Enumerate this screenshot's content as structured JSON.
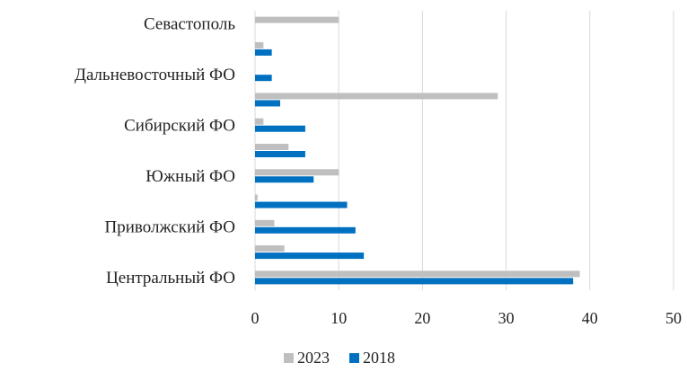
{
  "chart_data": {
    "type": "barh",
    "categories": [
      "Центральный ФО",
      null,
      "Приволжский ФО",
      null,
      "Южный ФО",
      null,
      "Сибирский ФО",
      null,
      "Дальневосточный ФО",
      null,
      "Севастополь"
    ],
    "series": [
      {
        "name": "2023",
        "color": "#bfbfbf",
        "values": [
          38.8,
          3.5,
          2.3,
          0.3,
          10,
          4,
          1,
          29,
          0,
          1,
          10
        ]
      },
      {
        "name": "2018",
        "color": "#0070c0",
        "values": [
          38,
          13,
          12,
          11,
          7,
          6,
          6,
          3,
          2,
          2,
          null
        ]
      }
    ],
    "xlim": [
      0,
      50
    ],
    "xticks": [
      0,
      10,
      20,
      30,
      40,
      50
    ],
    "grid": true,
    "legend": "bottom"
  }
}
